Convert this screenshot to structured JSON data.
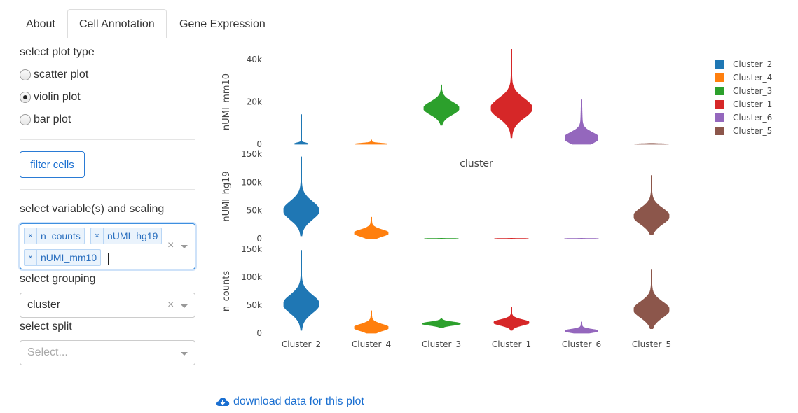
{
  "tabs": [
    {
      "label": "About",
      "active": false
    },
    {
      "label": "Cell Annotation",
      "active": true
    },
    {
      "label": "Gene Expression",
      "active": false
    }
  ],
  "sidebar": {
    "plot_type_label": "select plot type",
    "plot_types": [
      {
        "label": "scatter plot",
        "checked": false
      },
      {
        "label": "violin plot",
        "checked": true
      },
      {
        "label": "bar plot",
        "checked": false
      }
    ],
    "filter_button": "filter cells",
    "variables_label": "select variable(s) and scaling",
    "variables": [
      "n_counts",
      "nUMI_hg19",
      "nUMI_mm10"
    ],
    "chip_remove": "×",
    "clear_symbol": "×",
    "grouping_label": "select grouping",
    "grouping_value": "cluster",
    "split_label": "select split",
    "split_placeholder": "Select..."
  },
  "download_link": "download data for this plot",
  "chart_data": {
    "type": "violin",
    "xlabel": "cluster",
    "categories": [
      "Cluster_2",
      "Cluster_4",
      "Cluster_3",
      "Cluster_1",
      "Cluster_6",
      "Cluster_5"
    ],
    "colors": {
      "Cluster_2": "#1f77b4",
      "Cluster_4": "#ff7f0e",
      "Cluster_3": "#2ca02c",
      "Cluster_1": "#d62728",
      "Cluster_6": "#9467bd",
      "Cluster_5": "#8c564b"
    },
    "legend": [
      "Cluster_2",
      "Cluster_4",
      "Cluster_3",
      "Cluster_1",
      "Cluster_6",
      "Cluster_5"
    ],
    "legend_position": "top-right",
    "panels": [
      {
        "ylabel": "nUMI_mm10",
        "ylim": [
          0,
          40000
        ],
        "ticks": [
          {
            "v": 0,
            "t": "0"
          },
          {
            "v": 20000,
            "t": "20k"
          },
          {
            "v": 40000,
            "t": "40k"
          }
        ],
        "violins": {
          "Cluster_2": {
            "min": 0,
            "max": 14000,
            "center": 200,
            "spread": 500,
            "width": 0.2,
            "tail": 0.01
          },
          "Cluster_4": {
            "min": 0,
            "max": 2000,
            "center": 100,
            "spread": 400,
            "width": 0.45,
            "tail": 0.06
          },
          "Cluster_3": {
            "min": 9000,
            "max": 28000,
            "center": 17000,
            "spread": 3000,
            "width": 0.5,
            "tail": 0.03
          },
          "Cluster_1": {
            "min": 3000,
            "max": 47000,
            "center": 17000,
            "spread": 4500,
            "width": 0.58,
            "tail": 0.04
          },
          "Cluster_6": {
            "min": 0,
            "max": 21000,
            "center": 3000,
            "spread": 2500,
            "width": 0.46,
            "tail": 0.12
          },
          "Cluster_5": {
            "min": 0,
            "max": 400,
            "center": 100,
            "spread": 150,
            "width": 0.48,
            "tail": 0.02
          }
        }
      },
      {
        "ylabel": "nUMI_hg19",
        "ylim": [
          0,
          150000
        ],
        "ticks": [
          {
            "v": 0,
            "t": "0"
          },
          {
            "v": 50000,
            "t": "50k"
          },
          {
            "v": 100000,
            "t": "100k"
          },
          {
            "v": 150000,
            "t": "150k"
          }
        ],
        "violins": {
          "Cluster_2": {
            "min": 5000,
            "max": 145000,
            "center": 50000,
            "spread": 16000,
            "width": 0.5,
            "tail": 0.04
          },
          "Cluster_4": {
            "min": 0,
            "max": 38000,
            "center": 10000,
            "spread": 6000,
            "width": 0.48,
            "tail": 0.06
          },
          "Cluster_3": {
            "min": 0,
            "max": 800,
            "center": 200,
            "spread": 200,
            "width": 0.48,
            "tail": 0.02
          },
          "Cluster_1": {
            "min": 0,
            "max": 800,
            "center": 200,
            "spread": 200,
            "width": 0.48,
            "tail": 0.02
          },
          "Cluster_6": {
            "min": 0,
            "max": 800,
            "center": 200,
            "spread": 200,
            "width": 0.48,
            "tail": 0.02
          },
          "Cluster_5": {
            "min": 7000,
            "max": 112000,
            "center": 40000,
            "spread": 14000,
            "width": 0.5,
            "tail": 0.04
          }
        }
      },
      {
        "ylabel": "n_counts",
        "ylim": [
          0,
          150000
        ],
        "ticks": [
          {
            "v": 0,
            "t": "0"
          },
          {
            "v": 50000,
            "t": "50k"
          },
          {
            "v": 100000,
            "t": "100k"
          },
          {
            "v": 150000,
            "t": "150k"
          }
        ],
        "violins": {
          "Cluster_2": {
            "min": 5000,
            "max": 148000,
            "center": 52000,
            "spread": 16000,
            "width": 0.5,
            "tail": 0.04
          },
          "Cluster_4": {
            "min": 0,
            "max": 40000,
            "center": 10000,
            "spread": 6000,
            "width": 0.48,
            "tail": 0.06
          },
          "Cluster_3": {
            "min": 10000,
            "max": 26000,
            "center": 17000,
            "spread": 3000,
            "width": 0.54,
            "tail": 0.03
          },
          "Cluster_1": {
            "min": 5000,
            "max": 46000,
            "center": 19000,
            "spread": 5000,
            "width": 0.5,
            "tail": 0.05
          },
          "Cluster_6": {
            "min": 0,
            "max": 20000,
            "center": 4000,
            "spread": 3000,
            "width": 0.46,
            "tail": 0.08
          },
          "Cluster_5": {
            "min": 8000,
            "max": 113000,
            "center": 42000,
            "spread": 14000,
            "width": 0.5,
            "tail": 0.04
          }
        }
      }
    ]
  }
}
